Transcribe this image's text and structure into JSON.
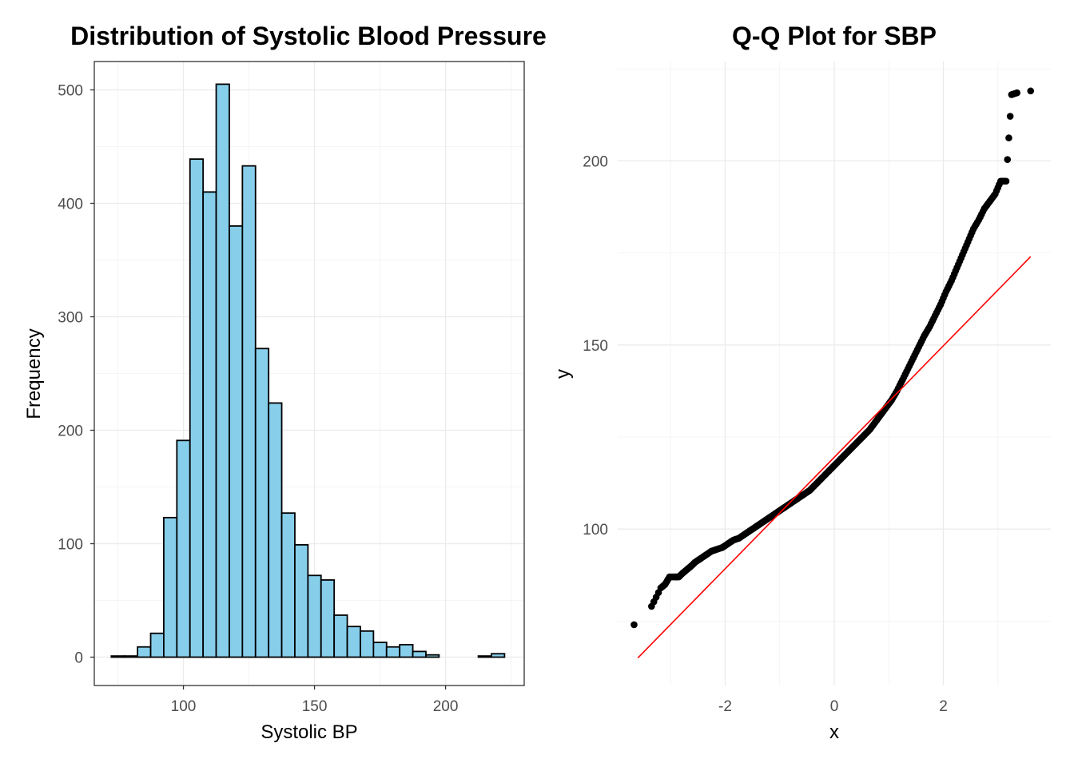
{
  "chart_data": [
    {
      "type": "bar",
      "title": "Distribution of Systolic Blood Pressure",
      "xlabel": "Systolic BP",
      "ylabel": "Frequency",
      "bin_width": 5,
      "bins": [
        {
          "from": 72.5,
          "to": 77.5,
          "count": 1
        },
        {
          "from": 77.5,
          "to": 82.5,
          "count": 1
        },
        {
          "from": 82.5,
          "to": 87.5,
          "count": 9
        },
        {
          "from": 87.5,
          "to": 92.5,
          "count": 21
        },
        {
          "from": 92.5,
          "to": 97.5,
          "count": 123
        },
        {
          "from": 97.5,
          "to": 102.5,
          "count": 191
        },
        {
          "from": 102.5,
          "to": 107.5,
          "count": 439
        },
        {
          "from": 107.5,
          "to": 112.5,
          "count": 410
        },
        {
          "from": 112.5,
          "to": 117.5,
          "count": 505
        },
        {
          "from": 117.5,
          "to": 122.5,
          "count": 380
        },
        {
          "from": 122.5,
          "to": 127.5,
          "count": 433
        },
        {
          "from": 127.5,
          "to": 132.5,
          "count": 272
        },
        {
          "from": 132.5,
          "to": 137.5,
          "count": 224
        },
        {
          "from": 137.5,
          "to": 142.5,
          "count": 127
        },
        {
          "from": 142.5,
          "to": 147.5,
          "count": 99
        },
        {
          "from": 147.5,
          "to": 152.5,
          "count": 72
        },
        {
          "from": 152.5,
          "to": 157.5,
          "count": 68
        },
        {
          "from": 157.5,
          "to": 162.5,
          "count": 37
        },
        {
          "from": 162.5,
          "to": 167.5,
          "count": 27
        },
        {
          "from": 167.5,
          "to": 172.5,
          "count": 23
        },
        {
          "from": 172.5,
          "to": 177.5,
          "count": 13
        },
        {
          "from": 177.5,
          "to": 182.5,
          "count": 9
        },
        {
          "from": 182.5,
          "to": 187.5,
          "count": 11
        },
        {
          "from": 187.5,
          "to": 192.5,
          "count": 5
        },
        {
          "from": 192.5,
          "to": 197.5,
          "count": 2
        },
        {
          "from": 197.5,
          "to": 202.5,
          "count": 0
        },
        {
          "from": 202.5,
          "to": 207.5,
          "count": 0
        },
        {
          "from": 207.5,
          "to": 212.5,
          "count": 0
        },
        {
          "from": 212.5,
          "to": 217.5,
          "count": 1
        },
        {
          "from": 217.5,
          "to": 222.5,
          "count": 3
        }
      ],
      "xlim": [
        66,
        230
      ],
      "ylim": [
        -25,
        525
      ],
      "x_ticks": [
        100,
        150,
        200
      ],
      "y_ticks": [
        0,
        100,
        200,
        300,
        400,
        500
      ],
      "fill_color": "#87ceeb",
      "border_color": "#000000",
      "panel_border": true,
      "grid": true
    },
    {
      "type": "scatter",
      "title": "Q-Q Plot for SBP",
      "xlabel": "x",
      "ylabel": "y",
      "xlim": [
        -3.97,
        3.97
      ],
      "ylim": [
        57.5,
        227
      ],
      "x_ticks": [
        -2,
        0,
        2
      ],
      "y_ticks": [
        100,
        150,
        200
      ],
      "points": [
        [
          -3.67,
          74
        ],
        [
          -3.35,
          79
        ],
        [
          -3.18,
          84
        ],
        [
          -3.1,
          85
        ],
        [
          -3.02,
          87
        ],
        [
          -2.92,
          87
        ],
        [
          -2.85,
          87
        ],
        [
          -2.78,
          88
        ],
        [
          -2.7,
          89
        ],
        [
          -2.62,
          90
        ],
        [
          -2.55,
          91
        ],
        [
          -2.45,
          92
        ],
        [
          -2.35,
          93
        ],
        [
          -2.25,
          94
        ],
        [
          -2.15,
          94.5
        ],
        [
          -2.05,
          95
        ],
        [
          -1.95,
          96
        ],
        [
          -1.85,
          97
        ],
        [
          -1.75,
          97.5
        ],
        [
          -1.65,
          98.5
        ],
        [
          -1.55,
          99.5
        ],
        [
          -1.45,
          100.5
        ],
        [
          -1.35,
          101.5
        ],
        [
          -1.25,
          102.5
        ],
        [
          -1.15,
          103.5
        ],
        [
          -1.05,
          104.5
        ],
        [
          -0.95,
          105.5
        ],
        [
          -0.85,
          106.5
        ],
        [
          -0.75,
          107.5
        ],
        [
          -0.65,
          108.5
        ],
        [
          -0.55,
          109.5
        ],
        [
          -0.45,
          110.5
        ],
        [
          -0.35,
          112
        ],
        [
          -0.25,
          113.5
        ],
        [
          -0.15,
          115
        ],
        [
          -0.05,
          116.5
        ],
        [
          0.05,
          118
        ],
        [
          0.15,
          119.5
        ],
        [
          0.25,
          121
        ],
        [
          0.35,
          122.5
        ],
        [
          0.45,
          124
        ],
        [
          0.55,
          125.5
        ],
        [
          0.65,
          127
        ],
        [
          0.75,
          129
        ],
        [
          0.85,
          131
        ],
        [
          0.95,
          133
        ],
        [
          1.05,
          135
        ],
        [
          1.15,
          137.5
        ],
        [
          1.25,
          140.5
        ],
        [
          1.35,
          143.5
        ],
        [
          1.45,
          146.5
        ],
        [
          1.55,
          149.5
        ],
        [
          1.65,
          152.5
        ],
        [
          1.75,
          155
        ],
        [
          1.85,
          158
        ],
        [
          1.95,
          161
        ],
        [
          2.05,
          164.5
        ],
        [
          2.15,
          167.5
        ],
        [
          2.25,
          171
        ],
        [
          2.35,
          174.5
        ],
        [
          2.45,
          178
        ],
        [
          2.55,
          181.5
        ],
        [
          2.65,
          184
        ],
        [
          2.75,
          187
        ],
        [
          2.85,
          189
        ],
        [
          2.95,
          191
        ],
        [
          3.05,
          194.5
        ],
        [
          3.15,
          194.5
        ],
        [
          3.25,
          218
        ],
        [
          3.35,
          218.5
        ],
        [
          3.6,
          219
        ]
      ],
      "reference_line": {
        "from": [
          -3.6,
          65
        ],
        "to": [
          3.6,
          174
        ],
        "color": "#ff0000"
      },
      "point_color": "#000000",
      "grid": true
    }
  ]
}
